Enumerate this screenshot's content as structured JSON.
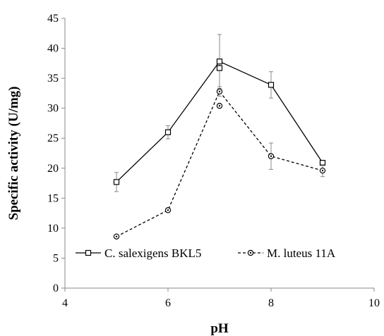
{
  "chart_data": {
    "type": "line",
    "title": "",
    "xlabel": "pH",
    "ylabel": "Specific activity (U/mg)",
    "xlim": [
      4,
      10
    ],
    "ylim": [
      0,
      45
    ],
    "xticks": [
      4,
      6,
      8,
      10
    ],
    "yticks": [
      0,
      5,
      10,
      15,
      20,
      25,
      30,
      35,
      40,
      45
    ],
    "grid": false,
    "legend_position": "bottom-center",
    "series": [
      {
        "name": "C. salexigens BKL5",
        "line_style": "solid",
        "marker": "square",
        "color": "#000000",
        "x": [
          5,
          6,
          7,
          8,
          9
        ],
        "y": [
          17.7,
          26.0,
          37.8,
          33.9,
          20.9
        ],
        "extra_points": [
          {
            "x": 7,
            "y": 36.7
          }
        ],
        "error": [
          1.6,
          1.1,
          4.5,
          2.2,
          0.4
        ]
      },
      {
        "name": "M. luteus 11A",
        "line_style": "dashed",
        "marker": "circle",
        "color": "#000000",
        "x": [
          5,
          6,
          7,
          8,
          9
        ],
        "y": [
          8.6,
          13.0,
          32.8,
          22.0,
          19.6
        ],
        "extra_points": [
          {
            "x": 7,
            "y": 30.4
          }
        ],
        "error": [
          0.2,
          0.3,
          0.8,
          2.2,
          1.0
        ]
      }
    ]
  }
}
